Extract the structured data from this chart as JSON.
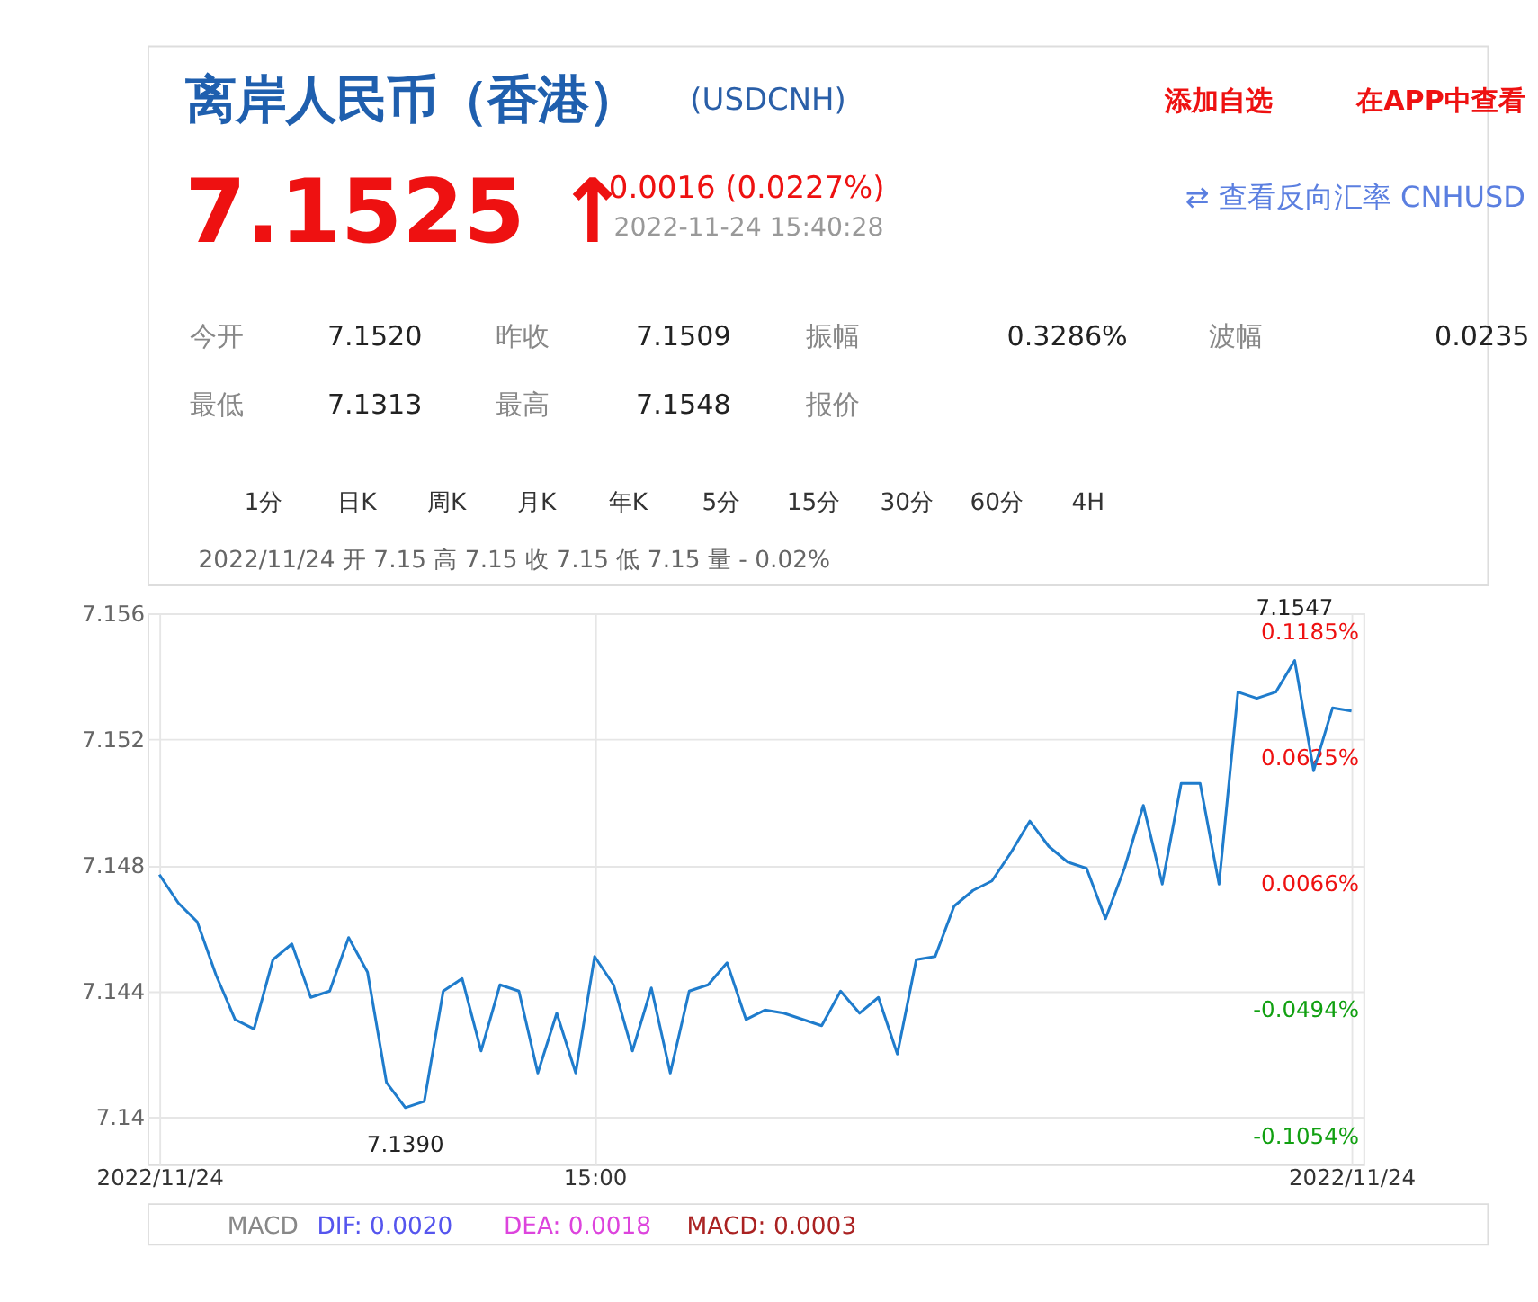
{
  "chart_data": {
    "type": "line",
    "title": "离岸人民币（香港）",
    "subtitle": "(USDCNH)",
    "categories": [
      "2022/11/24",
      null,
      null,
      null,
      null,
      null,
      null,
      null,
      null,
      null,
      null,
      null,
      null,
      null,
      null,
      null,
      null,
      null,
      null,
      null,
      null,
      null,
      null,
      "15:00",
      null,
      null,
      null,
      null,
      null,
      null,
      null,
      null,
      null,
      null,
      null,
      null,
      null,
      null,
      null,
      null,
      null,
      null,
      null,
      null,
      null,
      null,
      null,
      null,
      null,
      null,
      null,
      null,
      null,
      null,
      null,
      null,
      null,
      null,
      null,
      null,
      null,
      null,
      null,
      "2022/11/24"
    ],
    "series": [
      {
        "color": "#1f7ccc",
        "values": [
          7.1477,
          7.1468,
          7.1462,
          7.1445,
          7.1431,
          7.1428,
          7.145,
          7.1455,
          7.1438,
          7.144,
          7.1457,
          7.1446,
          7.1411,
          7.1403,
          7.1405,
          7.144,
          7.1444,
          7.1421,
          7.1442,
          7.144,
          7.1414,
          7.1433,
          7.1414,
          7.1451,
          7.1442,
          7.1421,
          7.1441,
          7.1414,
          7.144,
          7.1442,
          7.1449,
          7.1431,
          7.1434,
          7.1433,
          7.1431,
          7.1429,
          7.144,
          7.1433,
          7.1438,
          7.142,
          7.145,
          7.1451,
          7.1467,
          7.1472,
          7.1475,
          7.1484,
          7.1494,
          7.1486,
          7.1481,
          7.1479,
          7.1463,
          7.1479,
          7.1499,
          7.1474,
          7.1506,
          7.1506,
          7.1474,
          7.1535,
          7.1533,
          7.1535,
          7.1545,
          7.151,
          7.153,
          7.1529
        ]
      }
    ],
    "ylim": [
      7.1385,
      7.156
    ],
    "yticks": [
      {
        "value": 7.14,
        "label": "7.14"
      },
      7.144,
      7.148,
      7.152,
      7.156
    ],
    "y2lim": [
      -0.1264,
      0.1185
    ],
    "y2ticks": [
      {
        "value": -0.1054,
        "label": "-0.1054%"
      },
      {
        "value": -0.0494,
        "label": "-0.0494%"
      },
      {
        "value": 0.0066,
        "label": "0.0066%"
      },
      {
        "value": 0.0625,
        "label": "0.0625%"
      },
      {
        "value": 0.1185,
        "label": "0.1185%"
      }
    ],
    "grid": true,
    "marker": "none",
    "line_style": "solid",
    "annotations": [
      "添加自选",
      "在APP中查看",
      "7.1525 ↑",
      "0.0016 (0.0227%)",
      "2022-11-24 15:40:28",
      "⇄ 查看反向汇率 CNHUSD",
      "今开",
      "7.1520",
      "昨收",
      "7.1509",
      "振幅",
      "0.3286%",
      "波幅",
      "0.0235",
      "最低",
      "7.1313",
      "最高",
      "7.1548",
      "报价",
      "1分",
      "日K",
      "周K",
      "月K",
      "年K",
      "5分",
      "15分",
      "30分",
      "60分",
      "4H",
      "2022/11/24 开 7.15 高 7.15 收 7.15 低 7.15 量 - 0.02%",
      "MACD",
      "DIF: 0.0020",
      "DEA: 0.0018",
      "MACD: 0.0003",
      {
        "text": "7.1547",
        "y": 7.1545
      },
      {
        "text": "7.1390",
        "y": 7.1403
      }
    ]
  }
}
